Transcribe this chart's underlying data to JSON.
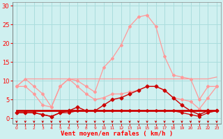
{
  "x": [
    0,
    1,
    2,
    3,
    4,
    5,
    6,
    7,
    8,
    9,
    10,
    11,
    12,
    13,
    14,
    15,
    16,
    17,
    18,
    19,
    20,
    21,
    22,
    23
  ],
  "rafales_peak": [
    8.5,
    10.5,
    8.5,
    6.5,
    3.0,
    8.5,
    10.5,
    10.0,
    8.5,
    7.0,
    13.5,
    16.0,
    19.5,
    24.5,
    27.0,
    27.5,
    24.5,
    16.5,
    11.5,
    11.0,
    10.5,
    5.0,
    8.5,
    8.5
  ],
  "rafales_flat": [
    8.5,
    10.5,
    10.5,
    10.5,
    10.5,
    10.5,
    10.5,
    10.5,
    10.5,
    10.5,
    10.5,
    10.5,
    10.5,
    10.5,
    10.5,
    10.5,
    10.5,
    10.5,
    10.5,
    10.5,
    10.5,
    10.5,
    10.5,
    11.0
  ],
  "medium_line": [
    8.5,
    8.5,
    6.5,
    3.5,
    3.0,
    8.5,
    10.5,
    8.5,
    6.5,
    5.0,
    5.5,
    6.5,
    6.5,
    7.0,
    7.5,
    8.5,
    8.5,
    7.5,
    5.5,
    5.0,
    4.5,
    2.5,
    5.5,
    8.5
  ],
  "vent_moyen": [
    1.5,
    1.5,
    1.5,
    1.0,
    0.5,
    1.5,
    2.0,
    3.0,
    2.0,
    2.0,
    3.5,
    5.0,
    5.5,
    6.5,
    7.5,
    8.5,
    8.5,
    7.5,
    5.5,
    3.5,
    2.0,
    1.0,
    2.0,
    2.0
  ],
  "flat_dark_high": [
    2.0,
    2.0,
    2.0,
    2.0,
    2.0,
    2.0,
    2.0,
    2.0,
    2.0,
    2.0,
    2.0,
    2.0,
    2.0,
    2.0,
    2.0,
    2.0,
    2.0,
    2.0,
    2.0,
    2.0,
    2.0,
    2.0,
    2.0,
    2.0
  ],
  "flat_dark_low": [
    1.5,
    1.5,
    1.5,
    1.0,
    0.5,
    1.5,
    1.5,
    2.0,
    2.0,
    2.0,
    2.0,
    2.0,
    2.0,
    2.0,
    2.0,
    2.0,
    2.0,
    2.0,
    2.0,
    1.5,
    1.0,
    0.5,
    1.5,
    2.0
  ],
  "bg_color": "#cff0f0",
  "grid_color": "#aadddd",
  "color_light_pink": "#ff9999",
  "color_medium_pink": "#ff7777",
  "color_dark_red": "#cc0000",
  "color_red": "#dd2222",
  "xlabel": "Vent moyen/en rafales ( km/h )",
  "yticks": [
    0,
    5,
    10,
    15,
    20,
    25,
    30
  ],
  "ylim": [
    -1.5,
    31
  ],
  "xlim": [
    -0.5,
    23.5
  ]
}
